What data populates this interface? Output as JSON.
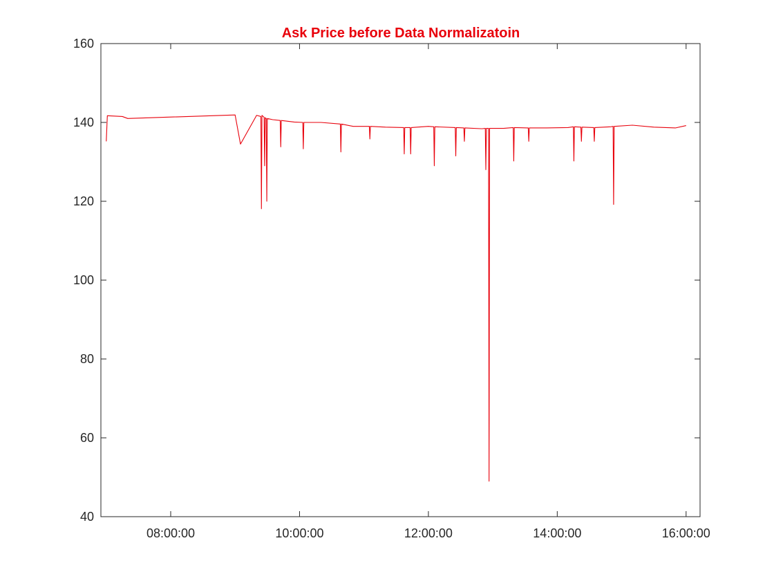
{
  "chart_data": {
    "type": "line",
    "title": "Ask Price before Data Normalizatoin",
    "xlabel": "",
    "ylabel": "",
    "x_axis_kind": "time",
    "xlim": [
      "06:55:00",
      "16:13:00"
    ],
    "ylim": [
      40,
      160
    ],
    "grid": false,
    "line_color": "#e8000b",
    "title_color": "#e8000b",
    "x_tick_labels": [
      "08:00:00",
      "10:00:00",
      "12:00:00",
      "14:00:00",
      "16:00:00"
    ],
    "y_tick_labels": [
      "40",
      "60",
      "80",
      "100",
      "120",
      "140",
      "160"
    ],
    "series": [
      {
        "points": [
          [
            "07:00:00",
            135.2
          ],
          [
            "07:01:00",
            141.7
          ],
          [
            "07:15:00",
            141.5
          ],
          [
            "07:20:00",
            141.0
          ],
          [
            "09:00:00",
            141.9
          ],
          [
            "09:05:00",
            134.5
          ],
          [
            "09:20:00",
            141.8
          ],
          [
            "09:24:00",
            141.5
          ],
          [
            "09:24:30",
            118.1
          ],
          [
            "09:25:00",
            141.8
          ],
          [
            "09:27:00",
            141.3
          ],
          [
            "09:27:30",
            129.0
          ],
          [
            "09:28:00",
            141.2
          ],
          [
            "09:29:00",
            141.0
          ],
          [
            "09:29:30",
            120.0
          ],
          [
            "09:30:00",
            141.0
          ],
          [
            "09:35:00",
            140.7
          ],
          [
            "09:42:00",
            140.5
          ],
          [
            "09:42:30",
            133.8
          ],
          [
            "09:43:00",
            140.5
          ],
          [
            "09:55:00",
            140.1
          ],
          [
            "10:03:00",
            140.0
          ],
          [
            "10:03:30",
            133.3
          ],
          [
            "10:04:00",
            140.0
          ],
          [
            "10:20:00",
            140.0
          ],
          [
            "10:38:00",
            139.6
          ],
          [
            "10:38:30",
            132.5
          ],
          [
            "10:39:00",
            139.6
          ],
          [
            "10:50:00",
            139.0
          ],
          [
            "11:05:00",
            139.0
          ],
          [
            "11:05:30",
            135.8
          ],
          [
            "11:06:00",
            139.0
          ],
          [
            "11:20:00",
            138.8
          ],
          [
            "11:37:00",
            138.7
          ],
          [
            "11:37:30",
            132.0
          ],
          [
            "11:38:00",
            138.7
          ],
          [
            "11:43:00",
            138.7
          ],
          [
            "11:43:30",
            132.0
          ],
          [
            "11:44:00",
            138.7
          ],
          [
            "12:00:00",
            139.0
          ],
          [
            "12:05:00",
            138.9
          ],
          [
            "12:05:30",
            129.0
          ],
          [
            "12:06:00",
            138.9
          ],
          [
            "12:25:00",
            138.7
          ],
          [
            "12:25:30",
            131.5
          ],
          [
            "12:26:00",
            138.7
          ],
          [
            "12:33:00",
            138.6
          ],
          [
            "12:33:30",
            135.2
          ],
          [
            "12:34:00",
            138.6
          ],
          [
            "12:50:00",
            138.4
          ],
          [
            "12:53:00",
            138.5
          ],
          [
            "12:53:30",
            128.0
          ],
          [
            "12:54:00",
            138.5
          ],
          [
            "12:56:00",
            138.5
          ],
          [
            "12:56:30",
            49.0
          ],
          [
            "12:57:00",
            138.5
          ],
          [
            "13:10:00",
            138.5
          ],
          [
            "13:19:00",
            138.7
          ],
          [
            "13:19:30",
            130.2
          ],
          [
            "13:20:00",
            138.7
          ],
          [
            "13:33:00",
            138.6
          ],
          [
            "13:33:30",
            135.2
          ],
          [
            "13:34:00",
            138.6
          ],
          [
            "13:50:00",
            138.6
          ],
          [
            "14:10:00",
            138.7
          ],
          [
            "14:15:00",
            138.9
          ],
          [
            "14:15:30",
            130.2
          ],
          [
            "14:16:00",
            138.9
          ],
          [
            "14:22:00",
            138.8
          ],
          [
            "14:22:30",
            135.2
          ],
          [
            "14:23:00",
            138.8
          ],
          [
            "14:34:00",
            138.7
          ],
          [
            "14:34:30",
            135.2
          ],
          [
            "14:35:00",
            138.7
          ],
          [
            "14:50:00",
            138.9
          ],
          [
            "14:52:00",
            139.0
          ],
          [
            "14:52:30",
            119.2
          ],
          [
            "14:53:00",
            139.0
          ],
          [
            "15:10:00",
            139.3
          ],
          [
            "15:30:00",
            138.8
          ],
          [
            "15:50:00",
            138.6
          ],
          [
            "16:00:00",
            139.2
          ]
        ]
      }
    ]
  }
}
